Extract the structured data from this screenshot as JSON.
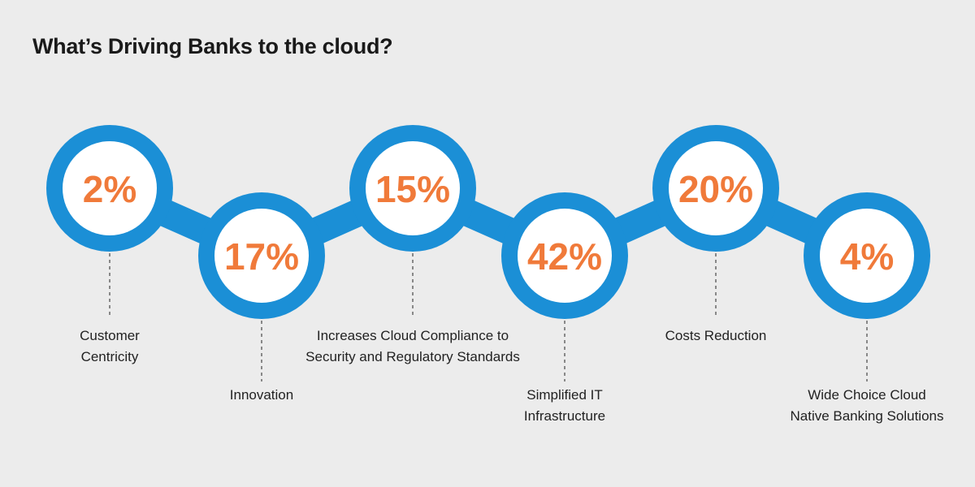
{
  "chart_data": {
    "type": "circles",
    "title": "What’s Driving Banks to the cloud?",
    "categories": [
      "Customer Centricity",
      "Innovation",
      "Increases Cloud Compliance to Security and Regulatory Standards",
      "Simplified IT Infrastructure",
      "Costs Reduction",
      "Wide Choice Cloud Native Banking Solutions"
    ],
    "values": [
      2,
      17,
      15,
      42,
      20,
      4
    ],
    "value_labels": [
      "2%",
      "17%",
      "15%",
      "42%",
      "20%",
      "4%"
    ],
    "color": "#1b8fd6",
    "label_color": "#f07a3a"
  }
}
